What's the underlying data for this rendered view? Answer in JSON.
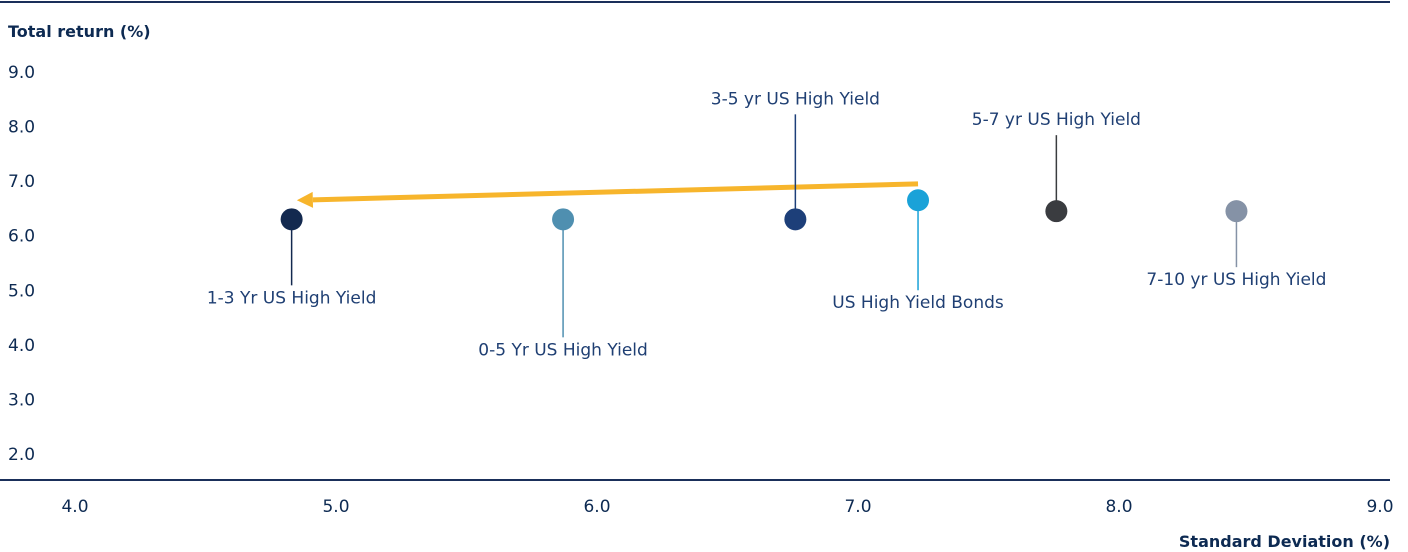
{
  "chart_data": {
    "type": "scatter",
    "ylabel": "Total return (%)",
    "xlabel": "Standard Deviation (%)",
    "xlim": [
      4.0,
      9.0
    ],
    "ylim": [
      2.0,
      9.0
    ],
    "xticks": [
      "4.0",
      "5.0",
      "6.0",
      "7.0",
      "8.0",
      "9.0"
    ],
    "yticks": [
      "9.0",
      "8.0",
      "7.0",
      "6.0",
      "5.0",
      "4.0",
      "3.0",
      "2.0"
    ],
    "grid": false,
    "points": [
      {
        "label": "1-3 Yr US High Yield",
        "x": 4.83,
        "y": 6.3,
        "color": "#13294f",
        "label_position": "below"
      },
      {
        "label": "0-5 Yr US High Yield",
        "x": 5.87,
        "y": 6.3,
        "color": "#4f8fb0",
        "label_position": "below"
      },
      {
        "label": "3-5 yr US High Yield",
        "x": 6.76,
        "y": 6.3,
        "color": "#1d3f79",
        "label_position": "above"
      },
      {
        "label": "US High Yield Bonds",
        "x": 7.23,
        "y": 6.65,
        "color": "#1aa2d8",
        "label_position": "below"
      },
      {
        "label": "5-7 yr US High Yield",
        "x": 7.76,
        "y": 6.45,
        "color": "#3a3c40",
        "label_position": "above"
      },
      {
        "label": "7-10 yr US High Yield",
        "x": 8.45,
        "y": 6.45,
        "color": "#8592a6",
        "label_position": "below"
      }
    ],
    "arrow": {
      "from": [
        7.23,
        6.95
      ],
      "to": [
        4.85,
        6.65
      ],
      "color": "#f7b52c"
    }
  }
}
